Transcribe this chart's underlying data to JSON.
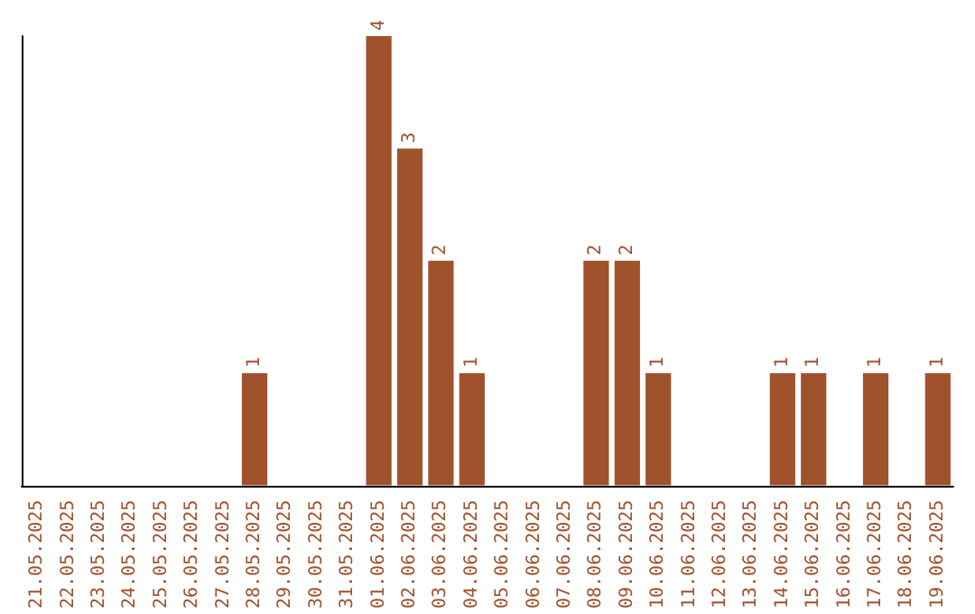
{
  "chart_data": {
    "type": "bar",
    "categories": [
      "21.05.2025",
      "22.05.2025",
      "23.05.2025",
      "24.05.2025",
      "25.05.2025",
      "26.05.2025",
      "27.05.2025",
      "28.05.2025",
      "29.05.2025",
      "30.05.2025",
      "31.05.2025",
      "01.06.2025",
      "02.06.2025",
      "03.06.2025",
      "04.06.2025",
      "05.06.2025",
      "06.06.2025",
      "07.06.2025",
      "08.06.2025",
      "09.06.2025",
      "10.06.2025",
      "11.06.2025",
      "12.06.2025",
      "13.06.2025",
      "14.06.2025",
      "15.06.2025",
      "16.06.2025",
      "17.06.2025",
      "18.06.2025",
      "19.06.2025"
    ],
    "values": [
      0,
      0,
      0,
      0,
      0,
      0,
      0,
      1,
      0,
      0,
      0,
      4,
      3,
      2,
      1,
      0,
      0,
      0,
      2,
      2,
      1,
      0,
      0,
      0,
      1,
      1,
      0,
      1,
      0,
      1
    ],
    "value_labels": [
      null,
      null,
      null,
      null,
      null,
      null,
      null,
      "1",
      null,
      null,
      null,
      "4",
      "3",
      "2",
      "1",
      null,
      null,
      null,
      "2",
      "2",
      "1",
      null,
      null,
      null,
      "1",
      "1",
      null,
      "1",
      null,
      "1"
    ],
    "color": "#a0522d"
  }
}
